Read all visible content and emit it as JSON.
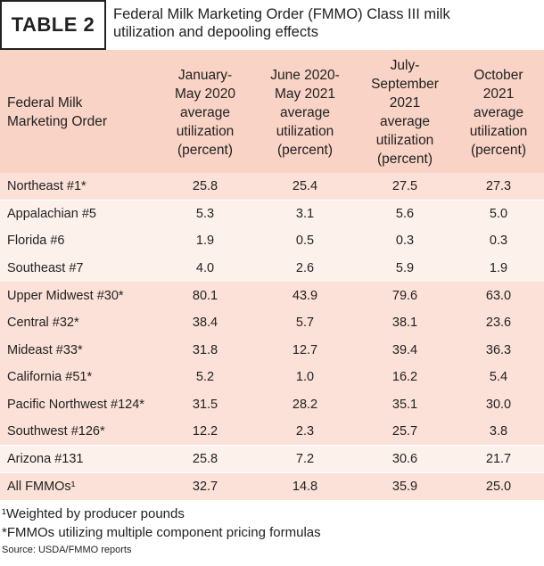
{
  "header": {
    "label": "TABLE 2",
    "title_line1": "Federal Milk Marketing Order (FMMO) Class III milk",
    "title_line2": "utilization and depooling effects"
  },
  "columns": [
    {
      "l1": "Federal Milk",
      "l2": "Marketing Order"
    },
    {
      "l1": "January-",
      "l2": "May 2020",
      "l3": "average",
      "l4": "utilization",
      "l5": "(percent)"
    },
    {
      "l1": "June 2020-",
      "l2": "May 2021",
      "l3": "average",
      "l4": "utilization",
      "l5": "(percent)"
    },
    {
      "l1": "July-",
      "l2": "September",
      "l3": "2021",
      "l4": "average",
      "l5": "utilization",
      "l6": "(percent)"
    },
    {
      "l1": "October",
      "l2": "2021",
      "l3": "average",
      "l4": "utilization",
      "l5": "(percent)"
    }
  ],
  "rows": [
    {
      "name": "Northeast #1*",
      "v": [
        "25.8",
        "25.4",
        "27.5",
        "27.3"
      ]
    },
    {
      "name": "Appalachian #5",
      "v": [
        "5.3",
        "3.1",
        "5.6",
        "5.0"
      ]
    },
    {
      "name": "Florida #6",
      "v": [
        "1.9",
        "0.5",
        "0.3",
        "0.3"
      ]
    },
    {
      "name": "Southeast #7",
      "v": [
        "4.0",
        "2.6",
        "5.9",
        "1.9"
      ]
    },
    {
      "name": "Upper Midwest #30*",
      "v": [
        "80.1",
        "43.9",
        "79.6",
        "63.0"
      ]
    },
    {
      "name": "Central #32*",
      "v": [
        "38.4",
        "5.7",
        "38.1",
        "23.6"
      ]
    },
    {
      "name": "Mideast #33*",
      "v": [
        "31.8",
        "12.7",
        "39.4",
        "36.3"
      ]
    },
    {
      "name": "California #51*",
      "v": [
        "5.2",
        "1.0",
        "16.2",
        "5.4"
      ]
    },
    {
      "name": "Pacific Northwest #124*",
      "v": [
        "31.5",
        "28.2",
        "35.1",
        "30.0"
      ]
    },
    {
      "name": "Southwest #126*",
      "v": [
        "12.2",
        "2.3",
        "25.7",
        "3.8"
      ]
    },
    {
      "name": "Arizona #131",
      "v": [
        "25.8",
        "7.2",
        "30.6",
        "21.7"
      ]
    },
    {
      "name": "All FMMOs¹",
      "v": [
        "32.7",
        "14.8",
        "35.9",
        "25.0"
      ]
    }
  ],
  "notes": {
    "footnote1": "¹Weighted by producer pounds",
    "footnote2": "*FMMOs utilizing multiple component pricing formulas",
    "source": "Source: USDA/FMMO reports"
  }
}
